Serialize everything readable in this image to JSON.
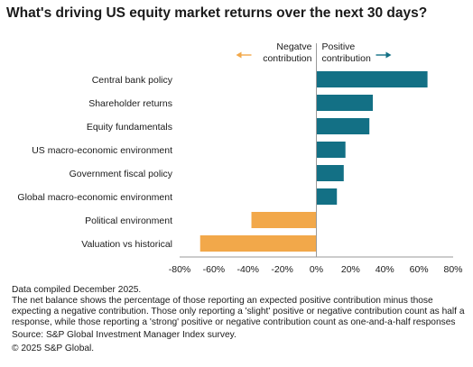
{
  "chart_data": {
    "type": "bar",
    "orientation": "horizontal",
    "title": "What's driving US equity market returns over the next 30 days?",
    "categories": [
      "Central bank policy",
      "Shareholder returns",
      "Equity fundamentals",
      "US macro-economic environment",
      "Government fiscal policy",
      "Global macro-economic environment",
      "Political environment",
      "Valuation vs historical"
    ],
    "values": [
      65,
      33,
      31,
      17,
      16,
      12,
      -38,
      -68
    ],
    "xlim": [
      -80,
      80
    ],
    "xticks": [
      "-80%",
      "-60%",
      "-40%",
      "-20%",
      "0%",
      "20%",
      "40%",
      "60%",
      "80%"
    ],
    "legend": {
      "negative_label_line1": "Negatve",
      "negative_label_line2": "contribution",
      "positive_label_line1": "Positive",
      "positive_label_line2": "contribution"
    },
    "colors": {
      "positive": "#137085",
      "negative": "#F2A84A",
      "axis": "#9a9a9a"
    },
    "grid": false
  },
  "notes": {
    "compiled": "Data compiled December 2025.",
    "explanation": "The net balance shows the percentage of those reporting an expected positive contribution minus those expecting a negative contribution. Those only reporting a 'slight' positive or negative contribution count as half a response, while those reporting a 'strong' positive or negative contribution count as one-and-a-half responses",
    "source": "Source: S&P Global Investment Manager Index survey.",
    "copyright": "© 2025 S&P Global."
  }
}
